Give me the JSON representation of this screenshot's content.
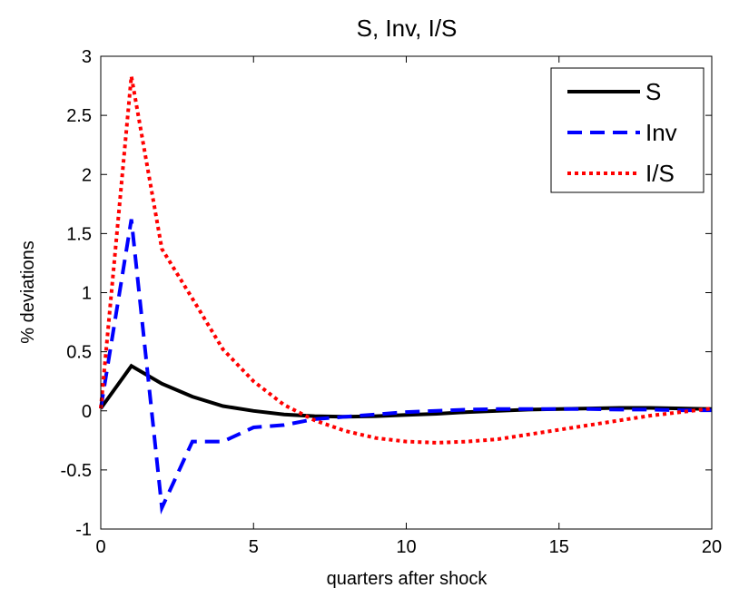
{
  "chart_data": {
    "type": "line",
    "title": "S, Inv, I/S",
    "xlabel": "quarters after shock",
    "ylabel": "% deviations",
    "xlim": [
      0,
      20
    ],
    "ylim": [
      -1,
      3
    ],
    "xticks": [
      0,
      5,
      10,
      15,
      20
    ],
    "yticks": [
      -1,
      -0.5,
      0,
      0.5,
      1,
      1.5,
      2,
      2.5,
      3
    ],
    "ytick_labels": [
      "-1",
      "-0.5",
      "0",
      "0.5",
      "1",
      "1.5",
      "2",
      "2.5",
      "3"
    ],
    "xtick_labels": [
      "0",
      "5",
      "10",
      "15",
      "20"
    ],
    "grid": false,
    "legend_position": "top-right",
    "x": [
      0,
      1,
      2,
      3,
      4,
      5,
      6,
      7,
      8,
      9,
      10,
      11,
      12,
      13,
      14,
      15,
      16,
      17,
      18,
      19,
      20
    ],
    "series": [
      {
        "name": "S",
        "color": "#000000",
        "style": "solid",
        "values": [
          0.02,
          0.38,
          0.23,
          0.12,
          0.04,
          0.0,
          -0.03,
          -0.045,
          -0.05,
          -0.045,
          -0.035,
          -0.025,
          -0.01,
          0.0,
          0.01,
          0.015,
          0.02,
          0.025,
          0.025,
          0.02,
          0.015
        ]
      },
      {
        "name": "Inv",
        "color": "#0000ff",
        "style": "dashed",
        "values": [
          0.02,
          1.62,
          -0.82,
          -0.26,
          -0.26,
          -0.14,
          -0.12,
          -0.07,
          -0.05,
          -0.03,
          -0.01,
          0.0,
          0.01,
          0.015,
          0.015,
          0.015,
          0.015,
          0.01,
          0.01,
          0.005,
          0.005
        ]
      },
      {
        "name": "I/S",
        "color": "#ff0000",
        "style": "dotted",
        "values": [
          0.02,
          2.83,
          1.37,
          0.95,
          0.52,
          0.25,
          0.05,
          -0.08,
          -0.17,
          -0.23,
          -0.26,
          -0.27,
          -0.26,
          -0.24,
          -0.2,
          -0.16,
          -0.12,
          -0.08,
          -0.04,
          -0.01,
          0.02
        ]
      }
    ]
  }
}
